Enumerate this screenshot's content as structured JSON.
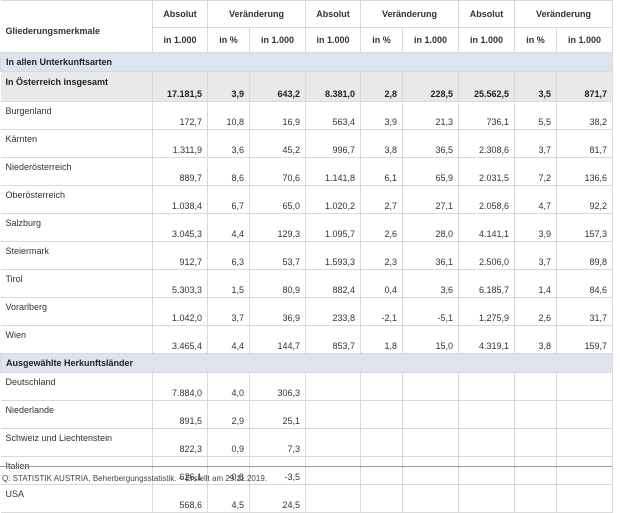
{
  "header": {
    "label": "Gliederungsmerkmale",
    "groups": [
      "Absolut",
      "Veränderung",
      "Absolut",
      "Veränderung",
      "Absolut",
      "Veränderung"
    ],
    "units": [
      "in 1.000",
      "in %",
      "in 1.000",
      "in 1.000",
      "in %",
      "in 1.000",
      "in 1.000",
      "in %",
      "in 1.000"
    ]
  },
  "sections": [
    {
      "title": "In allen Unterkunftsarten",
      "total": {
        "label": "In Österreich insgesamt",
        "values": [
          "17.181,5",
          "3,9",
          "643,2",
          "8.381,0",
          "2,8",
          "228,5",
          "25.562,5",
          "3,5",
          "871,7"
        ]
      },
      "rows": [
        {
          "label": "Burgenland",
          "values": [
            "172,7",
            "10,8",
            "16,9",
            "563,4",
            "3,9",
            "21,3",
            "736,1",
            "5,5",
            "38,2"
          ]
        },
        {
          "label": "Kärnten",
          "values": [
            "1.311,9",
            "3,6",
            "45,2",
            "996,7",
            "3,8",
            "36,5",
            "2.308,6",
            "3,7",
            "81,7"
          ]
        },
        {
          "label": "Niederösterreich",
          "values": [
            "889,7",
            "8,6",
            "70,6",
            "1.141,8",
            "6,1",
            "65,9",
            "2.031,5",
            "7,2",
            "136,6"
          ]
        },
        {
          "label": "Oberösterreich",
          "values": [
            "1.038,4",
            "6,7",
            "65,0",
            "1.020,2",
            "2,7",
            "27,1",
            "2.058,6",
            "4,7",
            "92,2"
          ]
        },
        {
          "label": "Salzburg",
          "values": [
            "3.045,3",
            "4,4",
            "129,3",
            "1.095,7",
            "2,6",
            "28,0",
            "4.141,1",
            "3,9",
            "157,3"
          ]
        },
        {
          "label": "Steiermark",
          "values": [
            "912,7",
            "6,3",
            "53,7",
            "1.593,3",
            "2,3",
            "36,1",
            "2.506,0",
            "3,7",
            "89,8"
          ]
        },
        {
          "label": "Tirol",
          "values": [
            "5.303,3",
            "1,5",
            "80,9",
            "882,4",
            "0,4",
            "3,6",
            "6.185,7",
            "1,4",
            "84,6"
          ]
        },
        {
          "label": "Vorarlberg",
          "values": [
            "1.042,0",
            "3,7",
            "36,9",
            "233,8",
            "-2,1",
            "-5,1",
            "1.275,9",
            "2,6",
            "31,7"
          ]
        },
        {
          "label": "Wien",
          "values": [
            "3.465,4",
            "4,4",
            "144,7",
            "853,7",
            "1,8",
            "15,0",
            "4.319,1",
            "3,8",
            "159,7"
          ]
        }
      ]
    },
    {
      "title": "Ausgewählte Herkunftsländer",
      "rows": [
        {
          "label": "Deutschland",
          "values": [
            "7.884,0",
            "4,0",
            "306,3",
            "",
            "",
            "",
            "",
            "",
            ""
          ]
        },
        {
          "label": "Niederlande",
          "values": [
            "891,5",
            "2,9",
            "25,1",
            "",
            "",
            "",
            "",
            "",
            ""
          ]
        },
        {
          "label": "Schweiz und Liechtenstein",
          "values": [
            "822,3",
            "0,9",
            "7,3",
            "",
            "",
            "",
            "",
            "",
            ""
          ]
        },
        {
          "label": "Italien",
          "values": [
            "626,1",
            "-0,6",
            "-3,5",
            "",
            "",
            "",
            "",
            "",
            ""
          ]
        },
        {
          "label": "USA",
          "values": [
            "568,6",
            "4,5",
            "24,5",
            "",
            "",
            "",
            "",
            "",
            ""
          ]
        }
      ]
    }
  ],
  "footer": "Q: STATISTIK AUSTRIA, Beherbergungsstatistik. – Erstellt am 29.11.2019."
}
